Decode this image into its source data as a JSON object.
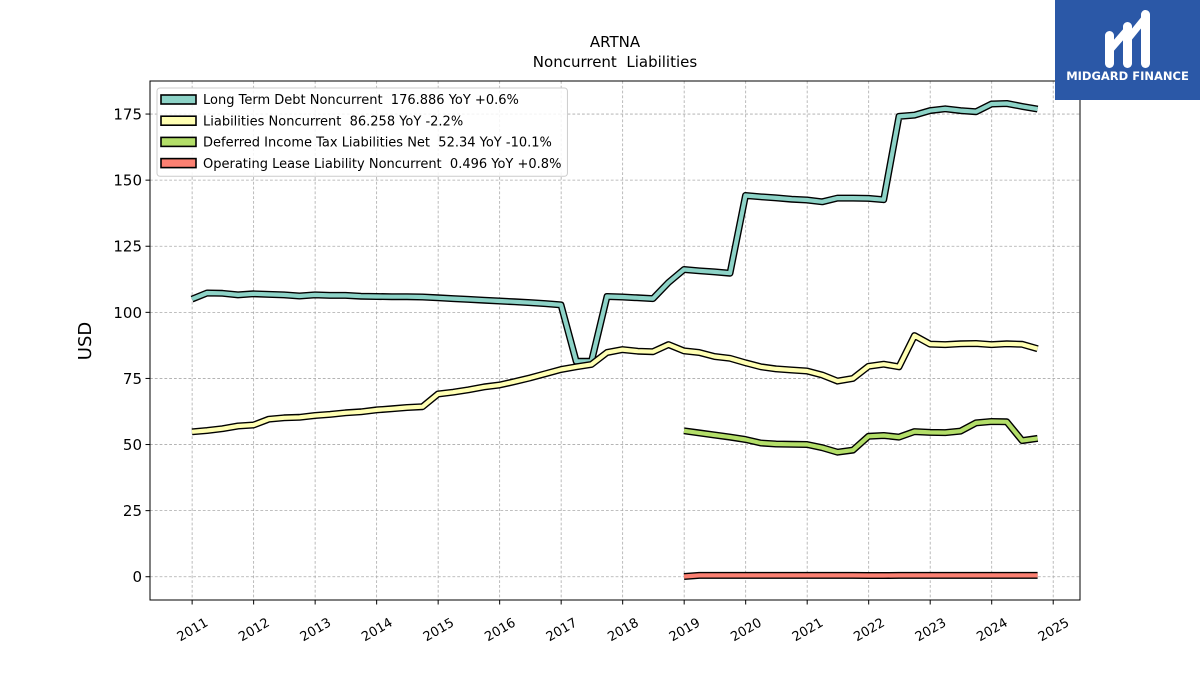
{
  "chart_data": {
    "type": "line",
    "title": "ARTNA",
    "subtitle": "Noncurrent  Liabilities",
    "ylabel": "USD",
    "x_scale": "date",
    "xlim": [
      "2010-04-26",
      "2025-06-09"
    ],
    "ylim": [
      -8.8,
      187.5
    ],
    "xticks": [
      "2011",
      "2012",
      "2013",
      "2014",
      "2015",
      "2016",
      "2017",
      "2018",
      "2019",
      "2020",
      "2021",
      "2022",
      "2023",
      "2024",
      "2025"
    ],
    "yticks": [
      0,
      25,
      50,
      75,
      100,
      125,
      150,
      175
    ],
    "grid": true,
    "legend_position": "top-left",
    "x": [
      "2010-12-31",
      "2011-03-31",
      "2011-06-30",
      "2011-09-30",
      "2011-12-31",
      "2012-03-31",
      "2012-06-30",
      "2012-09-30",
      "2012-12-31",
      "2013-03-31",
      "2013-06-30",
      "2013-09-30",
      "2013-12-31",
      "2014-03-31",
      "2014-06-30",
      "2014-09-30",
      "2014-12-31",
      "2015-03-31",
      "2015-06-30",
      "2015-09-30",
      "2015-12-31",
      "2016-03-31",
      "2016-06-30",
      "2016-09-30",
      "2016-12-31",
      "2017-03-31",
      "2017-06-30",
      "2017-09-30",
      "2017-12-31",
      "2018-03-31",
      "2018-06-30",
      "2018-09-30",
      "2018-12-31",
      "2019-03-31",
      "2019-06-30",
      "2019-09-30",
      "2019-12-31",
      "2020-03-31",
      "2020-06-30",
      "2020-09-30",
      "2020-12-31",
      "2021-03-31",
      "2021-06-30",
      "2021-09-30",
      "2021-12-31",
      "2022-03-31",
      "2022-06-30",
      "2022-09-30",
      "2022-12-31",
      "2023-03-31",
      "2023-06-30",
      "2023-09-30",
      "2023-12-31",
      "2024-03-31",
      "2024-06-30",
      "2024-09-30"
    ],
    "series": [
      {
        "name": "Long Term Debt Noncurrent  176.886 YoY +0.6%",
        "color": "#8dd3c7",
        "values": [
          105.0,
          107.3,
          107.2,
          106.6,
          107.0,
          106.8,
          106.6,
          106.2,
          106.6,
          106.4,
          106.4,
          106.1,
          106.0,
          105.9,
          105.9,
          105.8,
          105.5,
          105.2,
          104.9,
          104.6,
          104.3,
          104.0,
          103.7,
          103.3,
          102.8,
          81.5,
          81.5,
          106.0,
          105.8,
          105.5,
          105.2,
          111.3,
          116.2,
          115.7,
          115.3,
          114.8,
          144.2,
          143.7,
          143.3,
          142.8,
          142.5,
          141.8,
          143.2,
          143.2,
          143.1,
          142.6,
          174.1,
          174.6,
          176.3,
          177.0,
          176.3,
          175.9,
          178.8,
          179.0,
          177.9,
          176.886
        ]
      },
      {
        "name": "Liabilities Noncurrent  86.258 YoY -2.2%",
        "color": "#ffffb3",
        "values": [
          54.8,
          55.3,
          56.0,
          57.0,
          57.4,
          59.6,
          60.1,
          60.3,
          61.0,
          61.4,
          62.0,
          62.4,
          63.1,
          63.5,
          64.0,
          64.3,
          69.1,
          69.8,
          70.7,
          71.8,
          72.5,
          73.8,
          75.2,
          76.8,
          78.4,
          79.4,
          80.3,
          84.8,
          85.9,
          85.3,
          85.1,
          87.8,
          85.4,
          84.8,
          83.3,
          82.6,
          80.9,
          79.4,
          78.6,
          78.2,
          77.8,
          76.3,
          74.0,
          75.0,
          79.6,
          80.4,
          79.4,
          91.2,
          88.0,
          87.8,
          88.1,
          88.2,
          87.8,
          88.1,
          87.9,
          86.258
        ]
      },
      {
        "name": "Deferred Income Tax Liabilities Net  52.34 YoY -10.1%",
        "color": "#b3de69",
        "values": [
          null,
          null,
          null,
          null,
          null,
          null,
          null,
          null,
          null,
          null,
          null,
          null,
          null,
          null,
          null,
          null,
          null,
          null,
          null,
          null,
          null,
          null,
          null,
          null,
          null,
          null,
          null,
          null,
          null,
          null,
          null,
          null,
          55.2,
          54.4,
          53.6,
          52.8,
          51.9,
          50.6,
          50.2,
          50.1,
          50.0,
          48.8,
          47.1,
          47.9,
          53.1,
          53.4,
          52.8,
          54.9,
          54.6,
          54.5,
          55.1,
          58.2,
          58.7,
          58.6,
          51.5,
          52.34
        ]
      },
      {
        "name": "Operating Lease Liability Noncurrent  0.496 YoY +0.8%",
        "color": "#fb8072",
        "values": [
          null,
          null,
          null,
          null,
          null,
          null,
          null,
          null,
          null,
          null,
          null,
          null,
          null,
          null,
          null,
          null,
          null,
          null,
          null,
          null,
          null,
          null,
          null,
          null,
          null,
          null,
          null,
          null,
          null,
          null,
          null,
          null,
          0.1,
          0.52,
          0.52,
          0.51,
          0.51,
          0.5,
          0.5,
          0.5,
          0.49,
          0.49,
          0.49,
          0.49,
          0.48,
          0.48,
          0.49,
          0.49,
          0.49,
          0.49,
          0.49,
          0.492,
          0.49,
          0.5,
          0.5,
          0.496
        ]
      }
    ]
  },
  "logo": {
    "text": "MIDGARD FINANCE",
    "background": "#2b58a7"
  }
}
